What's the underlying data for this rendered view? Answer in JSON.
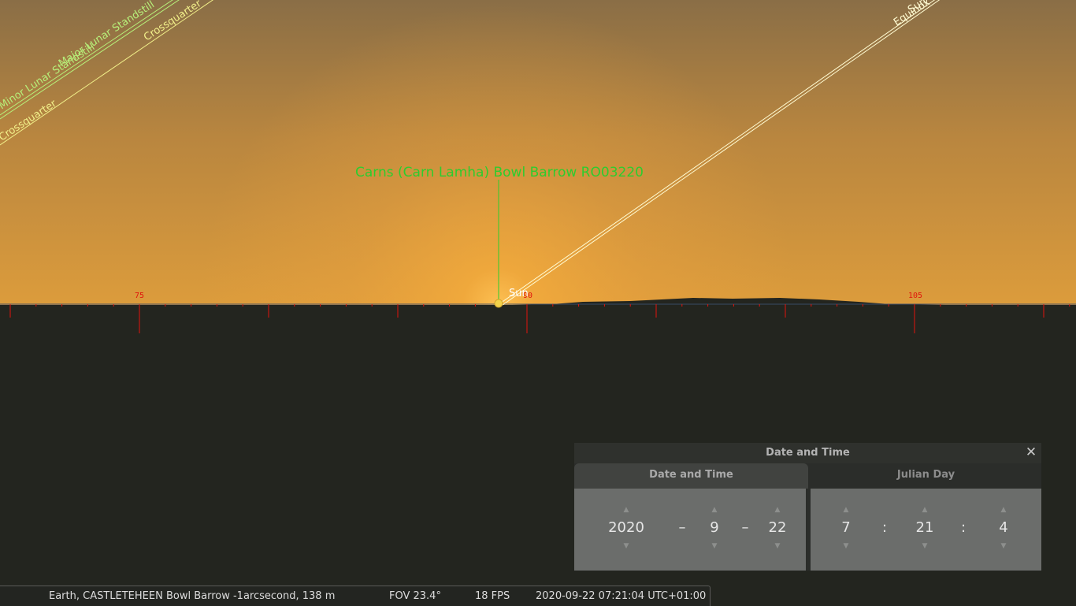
{
  "sky": {
    "landmark_label": "Carns (Carn Lamha) Bowl Barrow RO03220",
    "sun_label": "Sun",
    "azimuth_labels": [
      "75",
      "90",
      "105"
    ],
    "line_labels": {
      "minor_lunar_standstill": "Minor Lunar Standstill",
      "major_lunar_standstill": "Major Lunar Standstill",
      "crossquarter_left": "Crossquarter",
      "crossquarter_upper": "Crossquarter",
      "equinox": "Equinox",
      "sun_line": "Sun"
    },
    "colors": {
      "sky_top": "#8a6e46",
      "sky_glow": "#f0a73a",
      "ground": "#23251f",
      "landmark_label": "#2ecc2e",
      "azimuth_grid": "#e0140c",
      "lunar_line": "#b7f07a",
      "crossquarter_line": "#f2f08a",
      "equinox_line": "#fffbd2"
    }
  },
  "datetime_dialog": {
    "title": "Date and Time",
    "tabs": [
      "Date and Time",
      "Julian Day"
    ],
    "active_tab": "Date and Time",
    "date": {
      "year": "2020",
      "month": "9",
      "day": "22",
      "separator": "–"
    },
    "time": {
      "hour": "7",
      "minute": "21",
      "second": "4",
      "separator": ":"
    },
    "up_arrow": "▲",
    "down_arrow": "▼",
    "close_symbol": "✕"
  },
  "status_bar": {
    "location": "Earth, CASTLETEHEEN Bowl Barrow -1arcsecond, 138 m",
    "fov": "FOV 23.4°",
    "fps": "18 FPS",
    "datetime": "2020-09-22 07:21:04 UTC+01:00"
  }
}
